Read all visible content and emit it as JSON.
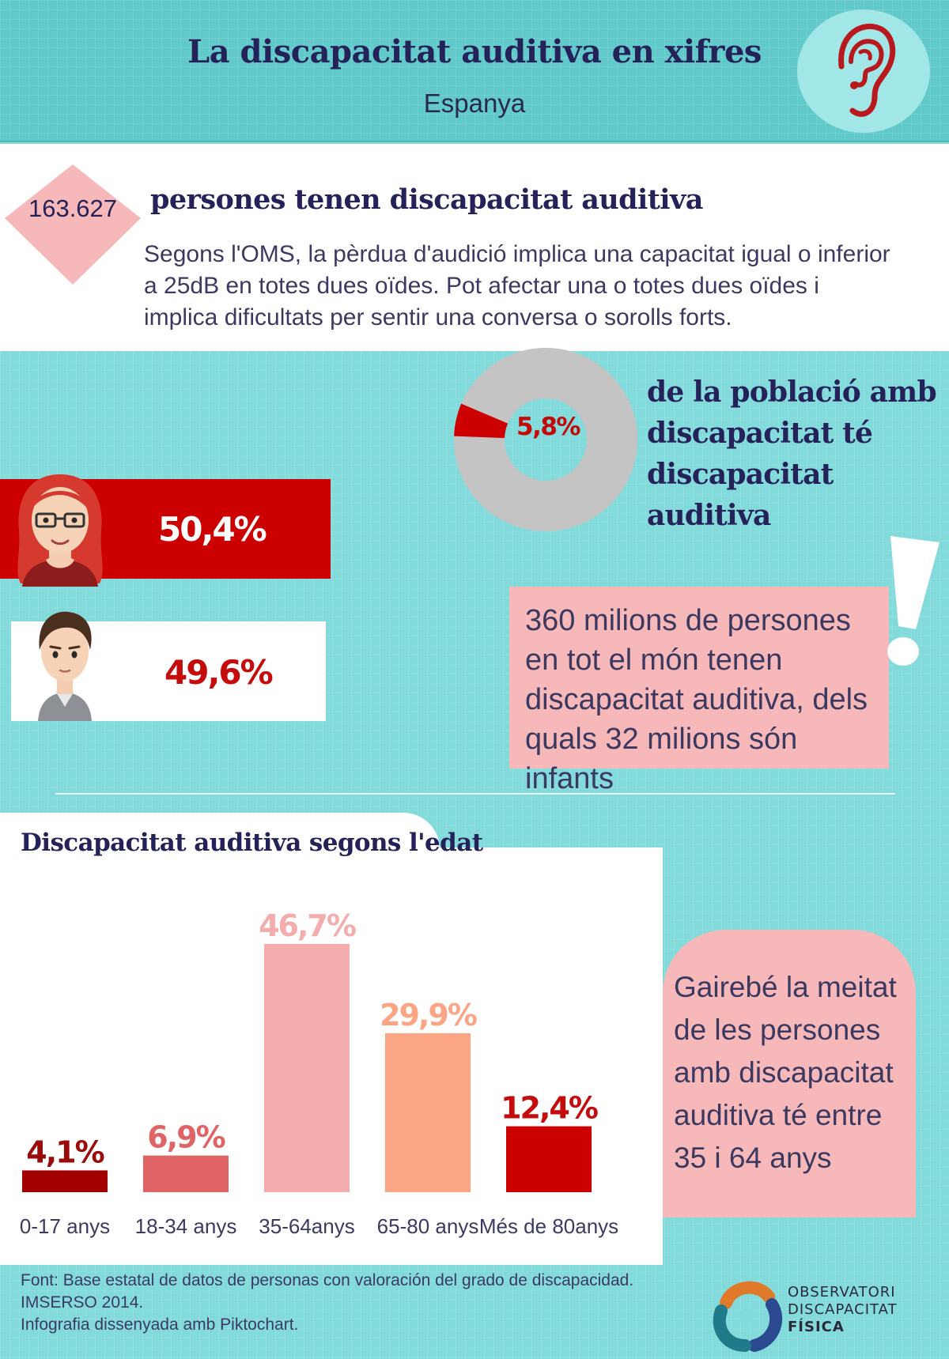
{
  "header": {
    "title": "La discapacitat auditiva en xifres",
    "subtitle": "Espanya",
    "icon": "ear-icon"
  },
  "intro": {
    "count": "163.627",
    "heading": "persones tenen discapacitat auditiva",
    "text": "Segons l'OMS, la pèrdua d'audició implica una capacitat igual o inferior a 25dB en totes dues oïdes. Pot afectar una o totes dues oïdes i implica dificultats per sentir una conversa o sorolls forts."
  },
  "donut": {
    "value_label": "5,8%",
    "value": 5.8,
    "caption": "de la població amb discapacitat té discapacitat auditiva"
  },
  "gender": {
    "female_label": "50,4%",
    "female_value": 50.4,
    "male_label": "49,6%",
    "male_value": 49.6
  },
  "world": {
    "text": "360 milions de persones en tot el món tenen discapacitat auditiva, dels quals 32 milions són infants"
  },
  "age_chart": {
    "title": "Discapacitat auditiva segons l'edat"
  },
  "callout": {
    "text": "Gairebé la meitat de les persones amb discapacitat auditiva té entre 35 i 64 anys"
  },
  "footer": {
    "line1": "Font: Base estatal de datos de personas con valoración del grado de discapacidad.",
    "line2": "IMSERSO 2014.",
    "line3": "Infografia dissenyada amb Piktochart.",
    "logo_line1": "OBSERVATORI",
    "logo_line2": "DISCAPACITAT",
    "logo_line3": "FÍSICA"
  },
  "colors": {
    "background": "#82dadb",
    "header": "#61c9c9",
    "dark_red": "#a30000",
    "red": "#cc0000",
    "coral": "#e06466",
    "pink": "#f4acad",
    "salmon": "#fba585",
    "navy": "#25225a"
  },
  "chart_data": {
    "type": "bar",
    "title": "Discapacitat auditiva segons l'edat",
    "categories": [
      "0-17 anys",
      "18-34 anys",
      "35-64anys",
      "65-80 anys",
      "Més de 80anys"
    ],
    "values": [
      4.1,
      6.9,
      46.7,
      29.9,
      12.4
    ],
    "value_labels": [
      "4,1%",
      "6,9%",
      "46,7%",
      "29,9%",
      "12,4%"
    ],
    "colors": [
      "#a30000",
      "#e06466",
      "#f4acad",
      "#fba585",
      "#cc0000"
    ],
    "label_colors": [
      "#9b0b0b",
      "#e06466",
      "#f4acad",
      "#fba585",
      "#c50b0b"
    ],
    "unit": "%"
  }
}
